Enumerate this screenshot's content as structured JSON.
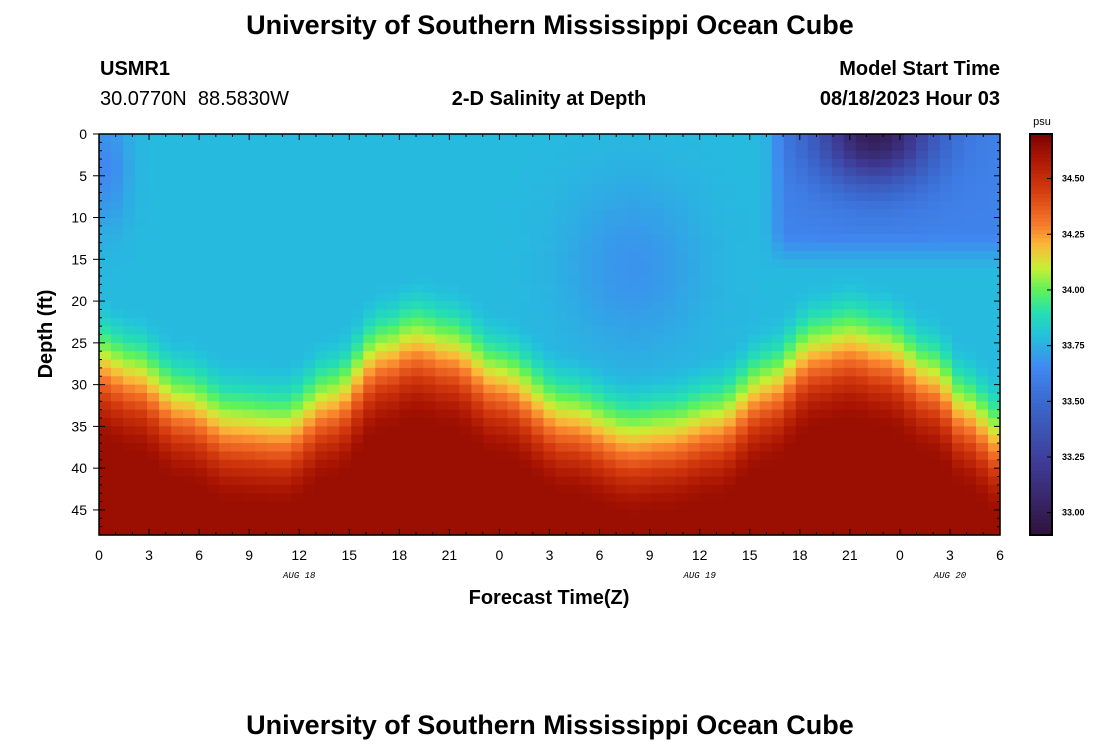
{
  "header": {
    "title": "University of Southern Mississippi Ocean Cube",
    "station_id": "USMR1",
    "coordinates": "30.0770N  88.5830W",
    "plot_title": "2-D Salinity at Depth",
    "model_start_label": "Model Start Time",
    "model_start_time": "08/18/2023 Hour 03"
  },
  "footer": {
    "title": "University of Southern Mississippi Ocean Cube"
  },
  "chart_data": {
    "type": "heatmap",
    "title": "2-D Salinity at Depth",
    "xlabel": "Forecast Time(Z)",
    "ylabel": "Depth (ft)",
    "x_hours_range": [
      0,
      54
    ],
    "y_depth_range_ft": [
      0,
      48
    ],
    "y_inverted": true,
    "x_ticks": [
      {
        "hour": 0,
        "label": "0"
      },
      {
        "hour": 3,
        "label": "3"
      },
      {
        "hour": 6,
        "label": "6"
      },
      {
        "hour": 9,
        "label": "9"
      },
      {
        "hour": 12,
        "label": "12"
      },
      {
        "hour": 15,
        "label": "15"
      },
      {
        "hour": 18,
        "label": "18"
      },
      {
        "hour": 21,
        "label": "21"
      },
      {
        "hour": 24,
        "label": "0"
      },
      {
        "hour": 27,
        "label": "3"
      },
      {
        "hour": 30,
        "label": "6"
      },
      {
        "hour": 33,
        "label": "9"
      },
      {
        "hour": 36,
        "label": "12"
      },
      {
        "hour": 39,
        "label": "15"
      },
      {
        "hour": 42,
        "label": "18"
      },
      {
        "hour": 45,
        "label": "21"
      },
      {
        "hour": 48,
        "label": "0"
      },
      {
        "hour": 51,
        "label": "3"
      },
      {
        "hour": 54,
        "label": "6"
      }
    ],
    "date_labels": [
      {
        "hour": 12,
        "label": "AUG 18"
      },
      {
        "hour": 36,
        "label": "AUG 19"
      },
      {
        "hour": 51,
        "label": "AUG 20"
      }
    ],
    "y_ticks": [
      0,
      5,
      10,
      15,
      20,
      25,
      30,
      35,
      40,
      45
    ],
    "colorbar": {
      "unit": "psu",
      "min": 32.9,
      "max": 34.7,
      "ticks": [
        {
          "value": 33.0,
          "label": "33.00"
        },
        {
          "value": 33.25,
          "label": "33.25"
        },
        {
          "value": 33.5,
          "label": "33.50"
        },
        {
          "value": 33.75,
          "label": "33.75"
        },
        {
          "value": 34.0,
          "label": "34.00"
        },
        {
          "value": 34.25,
          "label": "34.25"
        },
        {
          "value": 34.5,
          "label": "34.50"
        }
      ],
      "stops": [
        {
          "value": 32.9,
          "color": "#30123b"
        },
        {
          "value": 33.2,
          "color": "#3e3891"
        },
        {
          "value": 33.5,
          "color": "#3b6ad0"
        },
        {
          "value": 33.65,
          "color": "#4088f0"
        },
        {
          "value": 33.8,
          "color": "#23c2dc"
        },
        {
          "value": 33.9,
          "color": "#25e0b0"
        },
        {
          "value": 34.0,
          "color": "#5ff25a"
        },
        {
          "value": 34.1,
          "color": "#c8ef34"
        },
        {
          "value": 34.2,
          "color": "#fbb938"
        },
        {
          "value": 34.3,
          "color": "#f6762a"
        },
        {
          "value": 34.45,
          "color": "#d43a0e"
        },
        {
          "value": 34.6,
          "color": "#a81402"
        },
        {
          "value": 34.7,
          "color": "#7a0403"
        }
      ]
    },
    "salinity_model": {
      "surface_psu": 33.78,
      "bottom_psu": 34.63,
      "halocline_keyframes": [
        {
          "hour": 0,
          "depth": 28
        },
        {
          "hour": 2,
          "depth": 29.5
        },
        {
          "hour": 5,
          "depth": 33
        },
        {
          "hour": 8,
          "depth": 35.5
        },
        {
          "hour": 11,
          "depth": 36
        },
        {
          "hour": 14,
          "depth": 32.5
        },
        {
          "hour": 17,
          "depth": 27
        },
        {
          "hour": 19,
          "depth": 25.5
        },
        {
          "hour": 21,
          "depth": 26.5
        },
        {
          "hour": 24,
          "depth": 30
        },
        {
          "hour": 28,
          "depth": 34.5
        },
        {
          "hour": 32,
          "depth": 37
        },
        {
          "hour": 34,
          "depth": 36.5
        },
        {
          "hour": 37,
          "depth": 35
        },
        {
          "hour": 40,
          "depth": 31
        },
        {
          "hour": 43,
          "depth": 26.5
        },
        {
          "hour": 45,
          "depth": 25.5
        },
        {
          "hour": 47,
          "depth": 26.5
        },
        {
          "hour": 50,
          "depth": 30
        },
        {
          "hour": 52,
          "depth": 34
        },
        {
          "hour": 54,
          "depth": 37
        }
      ],
      "fresh_lens": {
        "core_hour": 46.5,
        "core_depth": 0,
        "core_psu": 33.0,
        "extent_hours": [
          39.5,
          54
        ],
        "extent_depth": 14
      },
      "fresh_edge_psu": 33.62
    }
  }
}
